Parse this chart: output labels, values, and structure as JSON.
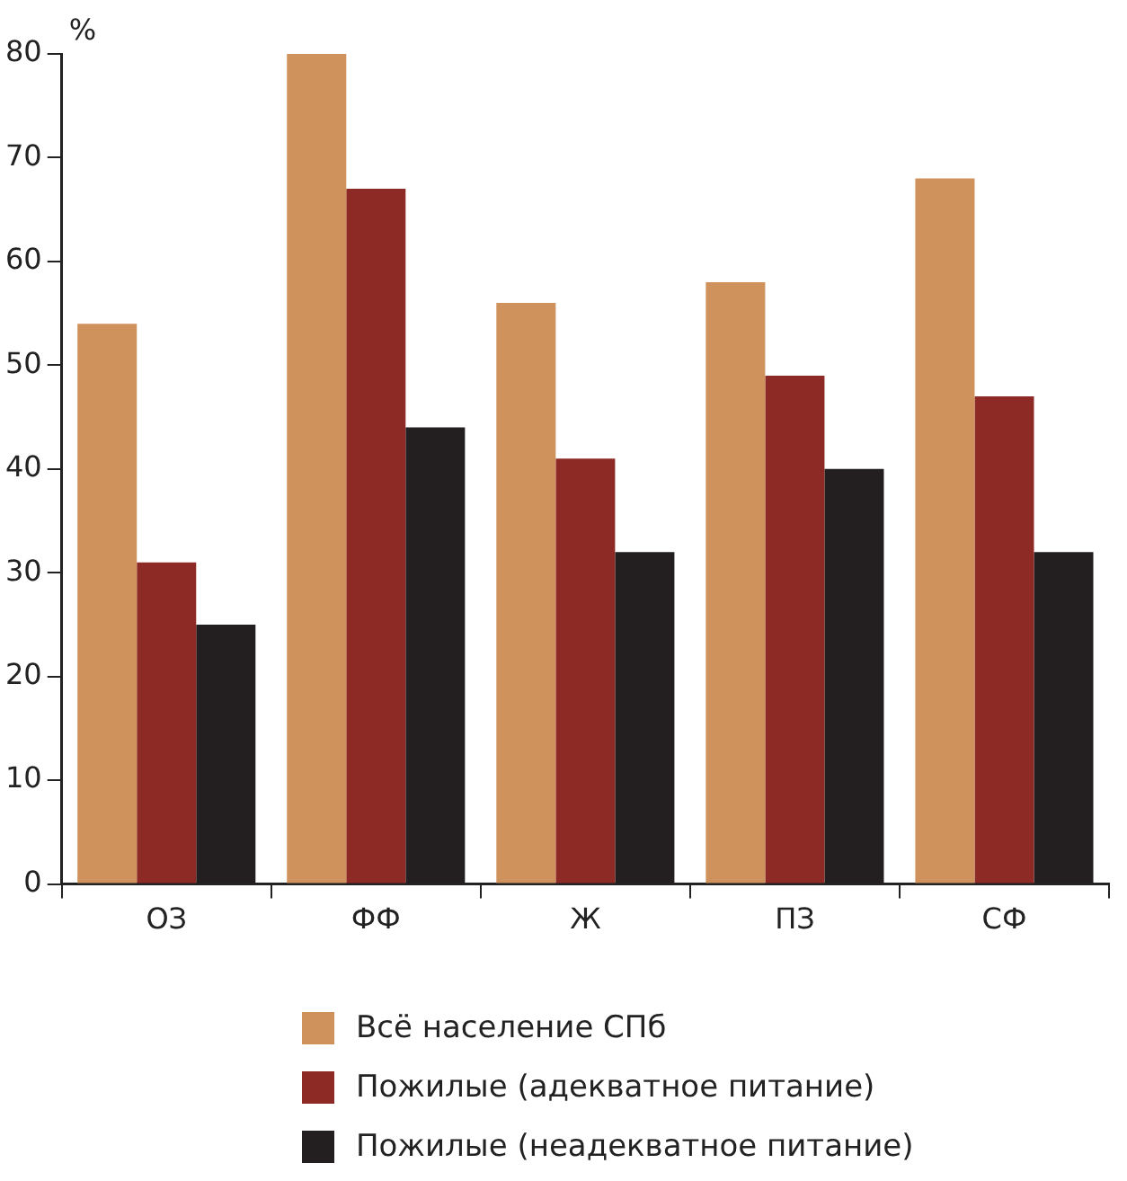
{
  "chart_data": {
    "type": "bar",
    "ylabel": "%",
    "categories": [
      "ОЗ",
      "ФФ",
      "Ж",
      "ПЗ",
      "СФ"
    ],
    "series": [
      {
        "name": "Всё население СПб",
        "color": "#d0925c",
        "values": [
          54,
          80,
          56,
          58,
          68
        ]
      },
      {
        "name": "Пожилые (адекватное питание)",
        "color": "#8e2a26",
        "values": [
          31,
          67,
          41,
          49,
          47
        ]
      },
      {
        "name": "Пожилые (неадекватное питание)",
        "color": "#231f20",
        "values": [
          25,
          44,
          32,
          40,
          32
        ]
      }
    ],
    "ylim": [
      0,
      80
    ],
    "yticks": [
      0,
      10,
      20,
      30,
      40,
      50,
      60,
      70,
      80
    ],
    "grid": false,
    "legend": "bottom"
  }
}
